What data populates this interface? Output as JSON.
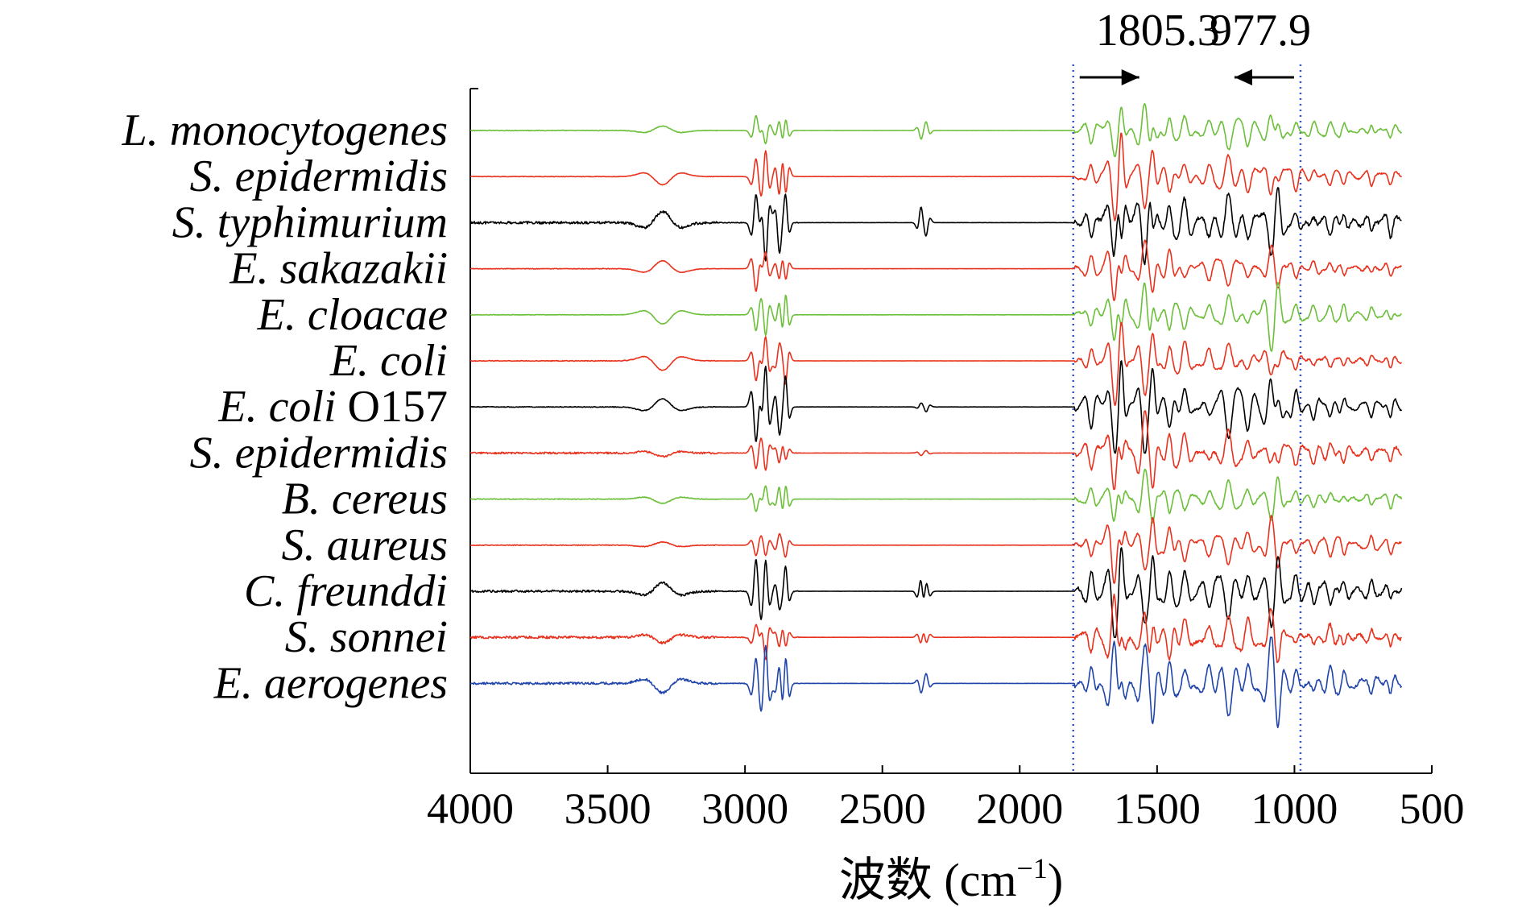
{
  "chart_data": {
    "type": "line",
    "title": "",
    "xlabel": "波数 (cm⁻¹)",
    "xlabel_main": "波数 (cm",
    "xlabel_sup": "−1",
    "xlabel_close": ")",
    "ylabel": "",
    "xlim": [
      4000,
      500
    ],
    "x_reversed": true,
    "xticks": [
      4000,
      3500,
      3000,
      2500,
      2000,
      1500,
      1000,
      500
    ],
    "grid": false,
    "plot_x_range": [
      4000,
      610
    ],
    "marker_lines": [
      {
        "label": "1805.3",
        "x": 1805.3,
        "color": "#3355cc",
        "arrow": "right"
      },
      {
        "label": "977.9",
        "x": 977.9,
        "color": "#3355cc",
        "arrow": "left"
      }
    ],
    "series": [
      {
        "name": "L. monocytogenes",
        "color": "#6cbf3a",
        "noise": 0.25,
        "finger": 0.9,
        "ch": 0.55,
        "co2": 0.6
      },
      {
        "name": "S. epidermidis",
        "color": "#e8321e",
        "noise": 0.2,
        "finger": 1.0,
        "ch": 1.0,
        "co2": 0.0
      },
      {
        "name": "S. typhimurium",
        "color": "#000000",
        "noise": 1.0,
        "finger": 1.3,
        "ch": 1.3,
        "co2": 1.0
      },
      {
        "name": "E. sakazakii",
        "color": "#e8321e",
        "noise": 0.25,
        "finger": 0.9,
        "ch": 0.9,
        "co2": 0.0
      },
      {
        "name": "E. cloacae",
        "color": "#6cbf3a",
        "noise": 0.2,
        "finger": 1.0,
        "ch": 1.0,
        "co2": 0.0
      },
      {
        "name": "E. coli",
        "color": "#e8321e",
        "noise": 0.3,
        "finger": 1.0,
        "ch": 1.0,
        "co2": 0.0
      },
      {
        "name": "E. coli",
        "name_suffix": "O157",
        "color": "#000000",
        "noise": 0.3,
        "finger": 1.4,
        "ch": 1.5,
        "co2": 0.3
      },
      {
        "name": "S. epidermidis",
        "color": "#e8321e",
        "noise": 0.7,
        "finger": 1.1,
        "ch": 0.6,
        "co2": 0.2
      },
      {
        "name": "B. cereus",
        "color": "#6cbf3a",
        "noise": 0.3,
        "finger": 0.8,
        "ch": 0.7,
        "co2": 0.0
      },
      {
        "name": "S. aureus",
        "color": "#e8321e",
        "noise": 0.3,
        "finger": 1.0,
        "ch": 0.5,
        "co2": 0.0
      },
      {
        "name": "C. freunddi",
        "color": "#000000",
        "noise": 0.9,
        "finger": 1.3,
        "ch": 1.3,
        "co2": 1.0
      },
      {
        "name": "S. sonnei",
        "color": "#e8321e",
        "noise": 1.0,
        "finger": 1.1,
        "ch": 0.8,
        "co2": 0.5
      },
      {
        "name": "E. aerogenes",
        "color": "#1f44aa",
        "noise": 0.9,
        "finger": 1.4,
        "ch": 1.3,
        "co2": 0.5
      }
    ]
  }
}
